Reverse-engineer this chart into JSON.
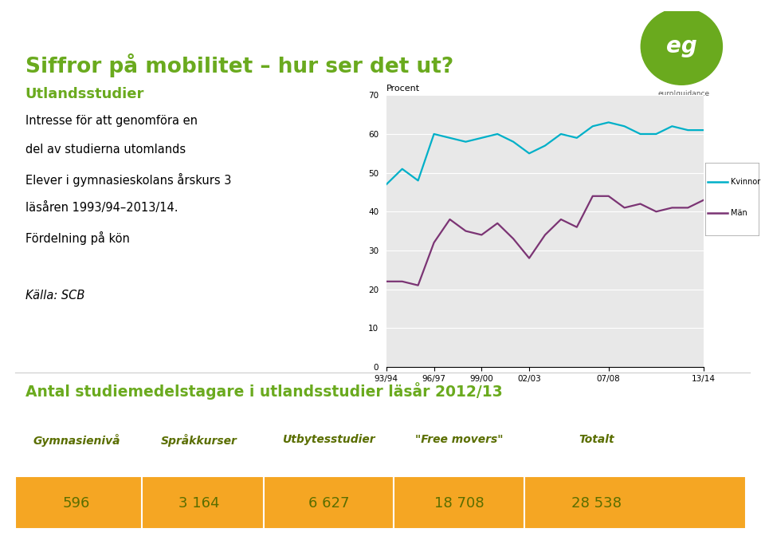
{
  "title": "Siffror på mobilitet – hur ser det ut?",
  "subtitle": "Utlandsstudier",
  "ylabel": "Procent",
  "ylim": [
    0,
    70
  ],
  "yticks": [
    0,
    10,
    20,
    30,
    40,
    50,
    60,
    70
  ],
  "xtick_labels": [
    "93/94",
    "96/97",
    "99/00",
    "02/03",
    "07/08",
    "13/14"
  ],
  "kvinnor_values": [
    47,
    51,
    48,
    60,
    59,
    58,
    59,
    60,
    58,
    55,
    57,
    60,
    59,
    62,
    63,
    62,
    60,
    60,
    62,
    61,
    61
  ],
  "man_values": [
    22,
    22,
    21,
    32,
    38,
    35,
    34,
    37,
    33,
    28,
    34,
    38,
    36,
    44,
    44,
    41,
    42,
    40,
    41,
    41,
    43
  ],
  "x_indices": [
    0,
    1,
    2,
    3,
    4,
    5,
    6,
    7,
    8,
    9,
    10,
    11,
    12,
    13,
    14,
    15,
    16,
    17,
    18,
    19,
    20
  ],
  "xtick_positions": [
    0,
    3,
    6,
    9,
    14,
    20
  ],
  "kvinnor_color": "#00b0c8",
  "man_color": "#7b3474",
  "legend_kvinnor": "Kvinnor",
  "legend_man": "Män",
  "title_color": "#6aaa1e",
  "subtitle_color": "#6aaa1e",
  "bottom_title": "Antal studiemedelstagare i utlandsstudier läsår 2012/13",
  "bottom_title_color": "#6aaa1e",
  "table_headers": [
    "Gymnasienivå",
    "Språkkurser",
    "Utbytesstudier",
    "\"Free movers\"",
    "Totalt"
  ],
  "table_values": [
    "596",
    "3 164",
    "6 627",
    "18 708",
    "28 538"
  ],
  "bg_color": "#ffffff",
  "chart_bg_color": "#e8e8e8",
  "grid_color": "#ffffff",
  "table_bg_color": "#f5a623",
  "table_text_color": "#5a6e00",
  "logo_color": "#6aaa1e"
}
